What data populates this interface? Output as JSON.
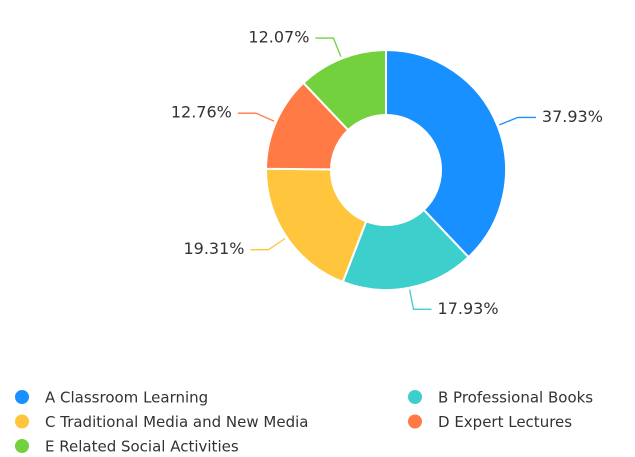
{
  "chart_data": {
    "type": "pie",
    "categories": [
      "A Classroom Learning",
      "B Professional Books",
      "C Traditional Media and New Media",
      "D Expert Lectures",
      "E Related Social Activities"
    ],
    "values": [
      37.93,
      17.93,
      19.31,
      12.76,
      12.07
    ],
    "value_labels": [
      "37.93%",
      "17.93%",
      "19.31%",
      "12.76%",
      "12.07%"
    ],
    "colors": [
      "#1890ff",
      "#3ccfcb",
      "#ffc53d",
      "#ff7a45",
      "#73d13d"
    ],
    "donut": true,
    "legend": "bottom"
  }
}
